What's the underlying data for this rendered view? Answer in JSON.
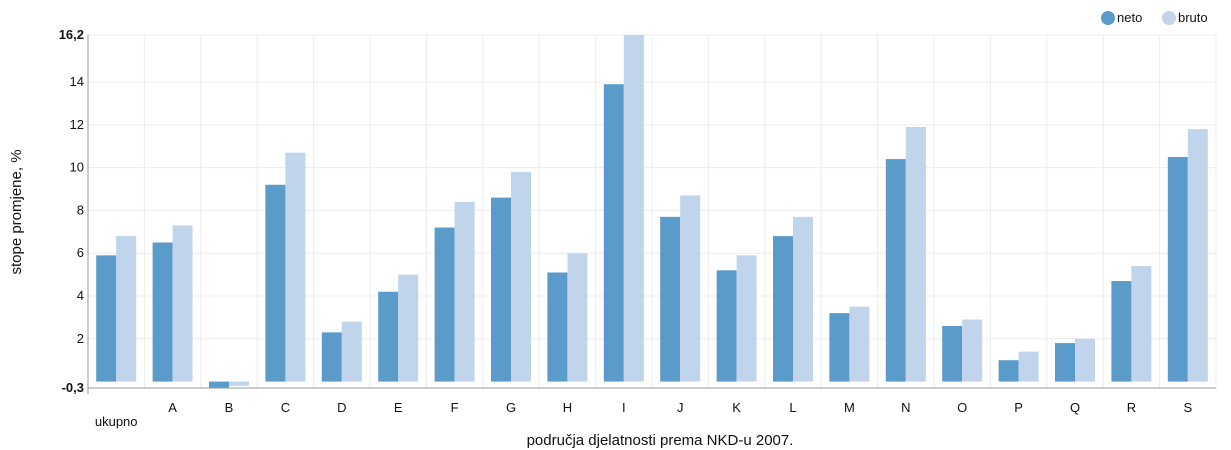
{
  "chart_data": {
    "type": "bar",
    "categories": [
      "ukupno",
      "A",
      "B",
      "C",
      "D",
      "E",
      "F",
      "G",
      "H",
      "I",
      "J",
      "K",
      "L",
      "M",
      "N",
      "O",
      "P",
      "Q",
      "R",
      "S"
    ],
    "series": [
      {
        "name": "neto",
        "color": "#5b9bc9",
        "values": [
          5.9,
          6.5,
          -0.3,
          9.2,
          2.3,
          4.2,
          7.2,
          8.6,
          5.1,
          13.9,
          7.7,
          5.2,
          6.8,
          3.2,
          10.4,
          2.6,
          1.0,
          1.8,
          4.7,
          10.5
        ]
      },
      {
        "name": "bruto",
        "color": "#c0d4ec",
        "values": [
          6.8,
          7.3,
          -0.2,
          10.7,
          2.8,
          5.0,
          8.4,
          9.8,
          6.0,
          16.2,
          8.7,
          5.9,
          7.7,
          3.5,
          11.9,
          2.9,
          1.4,
          2.0,
          5.4,
          11.8
        ]
      }
    ],
    "xlabel": "područja djelatnosti prema NKD-u 2007.",
    "ylabel": "stope promjene, %",
    "ylim": [
      -0.3,
      16.2
    ],
    "yticks": [
      {
        "value": -0.3,
        "label": "-0,3",
        "bold": true
      },
      {
        "value": 2,
        "label": "2",
        "bold": false
      },
      {
        "value": 4,
        "label": "4",
        "bold": false
      },
      {
        "value": 6,
        "label": "6",
        "bold": false
      },
      {
        "value": 8,
        "label": "8",
        "bold": false
      },
      {
        "value": 10,
        "label": "10",
        "bold": false
      },
      {
        "value": 12,
        "label": "12",
        "bold": false
      },
      {
        "value": 14,
        "label": "14",
        "bold": false
      },
      {
        "value": 16.2,
        "label": "16,2",
        "bold": true
      }
    ],
    "grid": true,
    "legend_position": "top-right"
  }
}
